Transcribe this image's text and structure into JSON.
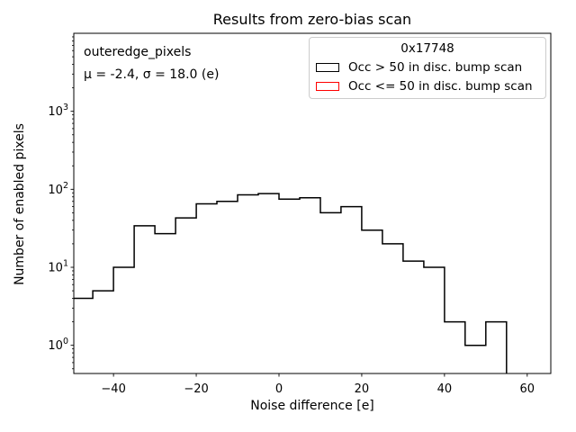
{
  "chart_data": {
    "type": "histogram",
    "title": "Results from zero-bias scan",
    "xlabel": "Noise difference [e]",
    "ylabel": "Number of enabled pixels",
    "yscale": "log",
    "grid": false,
    "xlim": [
      -49.6,
      65.7
    ],
    "ylim": [
      0.435,
      10000
    ],
    "bin_edges": [
      -50,
      -45,
      -40,
      -35,
      -30,
      -25,
      -20,
      -15,
      -10,
      -5,
      0,
      5,
      10,
      15,
      20,
      25,
      30,
      35,
      40,
      45,
      50,
      55
    ],
    "series": [
      {
        "name": "Occ > 50 in disc. bump scan",
        "color": "#000000",
        "counts": [
          4,
          5,
          10,
          34,
          27,
          43,
          65,
          70,
          85,
          88,
          75,
          78,
          50,
          60,
          30,
          20,
          12,
          10,
          2,
          1,
          2
        ]
      },
      {
        "name": "Occ <= 50 in disc. bump scan",
        "color": "#ff0000",
        "counts": []
      }
    ],
    "xticks": [
      {
        "v": -40,
        "label": "−40"
      },
      {
        "v": -20,
        "label": "−20"
      },
      {
        "v": 0,
        "label": "0"
      },
      {
        "v": 20,
        "label": "20"
      },
      {
        "v": 40,
        "label": "40"
      },
      {
        "v": 60,
        "label": "60"
      }
    ],
    "yticks": [
      {
        "v": 1,
        "exp": "0"
      },
      {
        "v": 10,
        "exp": "1"
      },
      {
        "v": 100,
        "exp": "2"
      },
      {
        "v": 1000,
        "exp": "3"
      }
    ],
    "stats": {
      "mu": -2.4,
      "sigma": 18.0
    }
  },
  "annotation": {
    "dataset": "outeredge_pixels",
    "stats_line": "μ = -2.4, σ = 18.0 (e)"
  },
  "legend": {
    "title": "0x17748",
    "entries": [
      {
        "label": "Occ > 50 in disc. bump scan",
        "color": "#000000"
      },
      {
        "label": "Occ <= 50 in disc. bump scan",
        "color": "#ff0000"
      }
    ]
  }
}
